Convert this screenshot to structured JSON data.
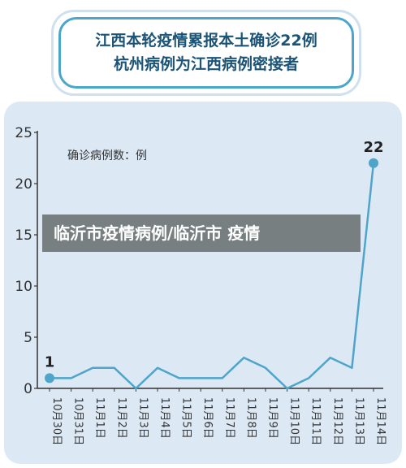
{
  "header": {
    "line1": "江西本轮疫情累报本土确诊22例",
    "line2": "杭州病例为江西病例密接者"
  },
  "banner": {
    "text": "临沂市疫情病例/临沂市 疫情"
  },
  "colors": {
    "line": "#4ea4c9",
    "title": "#1b5477",
    "panel": "#dce9f5"
  },
  "chart_data": {
    "type": "line",
    "ylabel": "确诊病例数：例",
    "ylim": [
      0,
      25
    ],
    "yticks": [
      0,
      5,
      10,
      15,
      20,
      25
    ],
    "categories": [
      "10月30日",
      "10月31日",
      "11月1日",
      "11月2日",
      "11月3日",
      "11月4日",
      "11月5日",
      "11月6日",
      "11月7日",
      "11月8日",
      "11月9日",
      "11月10日",
      "11月11日",
      "11月12日",
      "11月13日",
      "11月14日"
    ],
    "values": [
      1,
      1,
      2,
      2,
      0,
      2,
      1,
      1,
      1,
      3,
      2,
      0,
      1,
      3,
      2,
      22
    ],
    "data_labels": [
      {
        "index": 0,
        "text": "1"
      },
      {
        "index": 15,
        "text": "22"
      }
    ],
    "grid": false
  }
}
